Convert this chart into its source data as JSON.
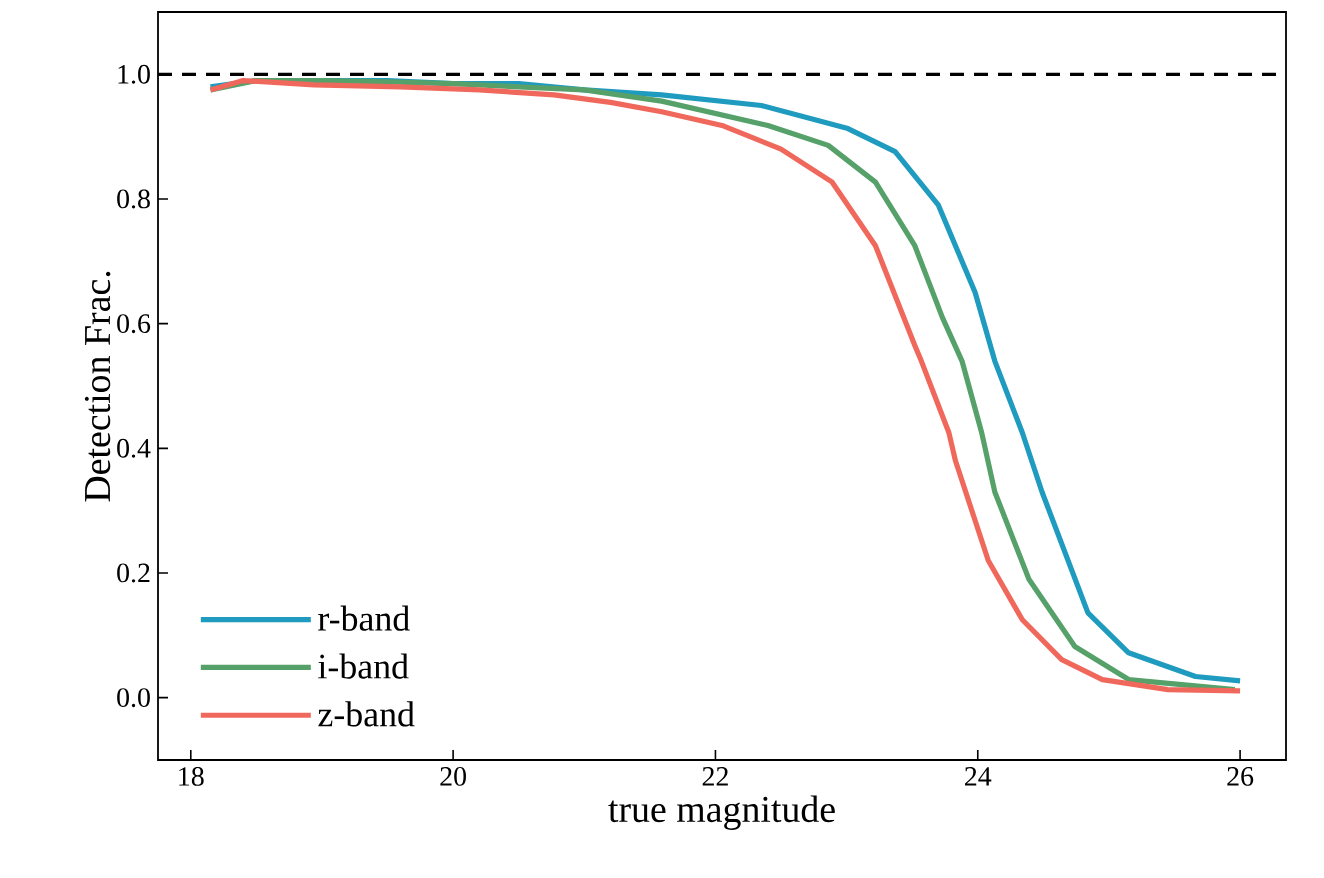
{
  "chart_data": {
    "type": "line",
    "xlabel": "true magnitude",
    "ylabel": "Detection Frac.",
    "xlim": [
      17.75,
      26.35
    ],
    "ylim": [
      -0.1,
      1.1
    ],
    "xticks": [
      18,
      20,
      22,
      24,
      26
    ],
    "yticks": [
      {
        "value": 0,
        "label": "0.0"
      },
      0.2,
      0.4,
      0.6,
      0.8,
      {
        "value": 1,
        "label": "1.0"
      }
    ],
    "legend": "bottom left",
    "line_style": "solid",
    "marker": "none",
    "ref_lines": [
      {
        "axis": "y",
        "value": 1,
        "color": "#000000",
        "line_style": "dashed"
      }
    ],
    "series": [
      {
        "name": "r-band",
        "color": "#1f9bbf",
        "x": [
          18.15,
          18.5,
          19,
          19.5,
          20,
          20.5,
          21,
          21.59,
          22.35,
          23.01,
          23.37,
          23.7,
          23.98,
          24.13,
          24.34,
          24.49,
          24.84,
          25.15,
          25.66,
          26
        ],
        "values": [
          0.98,
          0.99,
          0.99,
          0.99,
          0.985,
          0.985,
          0.975,
          0.967,
          0.95,
          0.913,
          0.876,
          0.79,
          0.65,
          0.54,
          0.425,
          0.33,
          0.136,
          0.072,
          0.034,
          0.027
        ]
      },
      {
        "name": "i-band",
        "color": "#56a06a",
        "x": [
          18.15,
          18.5,
          19,
          19.5,
          20,
          20.5,
          21,
          21.59,
          22.4,
          22.86,
          23.22,
          23.52,
          23.73,
          23.88,
          24.03,
          24.13,
          24.39,
          24.74,
          25.15,
          25.96
        ],
        "values": [
          0.975,
          0.99,
          0.99,
          0.988,
          0.985,
          0.98,
          0.975,
          0.957,
          0.918,
          0.886,
          0.827,
          0.725,
          0.61,
          0.54,
          0.425,
          0.33,
          0.19,
          0.082,
          0.029,
          0.013
        ]
      },
      {
        "name": "z-band",
        "color": "#f0685c",
        "x": [
          18.15,
          18.4,
          18.94,
          19.6,
          20.2,
          20.77,
          21.2,
          21.59,
          22.05,
          22.5,
          22.89,
          23.22,
          23.52,
          23.57,
          23.78,
          23.83,
          24.08,
          24.34,
          24.64,
          24.95,
          25.45,
          26
        ],
        "values": [
          0.975,
          0.99,
          0.983,
          0.98,
          0.975,
          0.967,
          0.955,
          0.94,
          0.918,
          0.88,
          0.827,
          0.725,
          0.565,
          0.54,
          0.425,
          0.38,
          0.22,
          0.125,
          0.061,
          0.029,
          0.013,
          0.011
        ]
      }
    ]
  }
}
